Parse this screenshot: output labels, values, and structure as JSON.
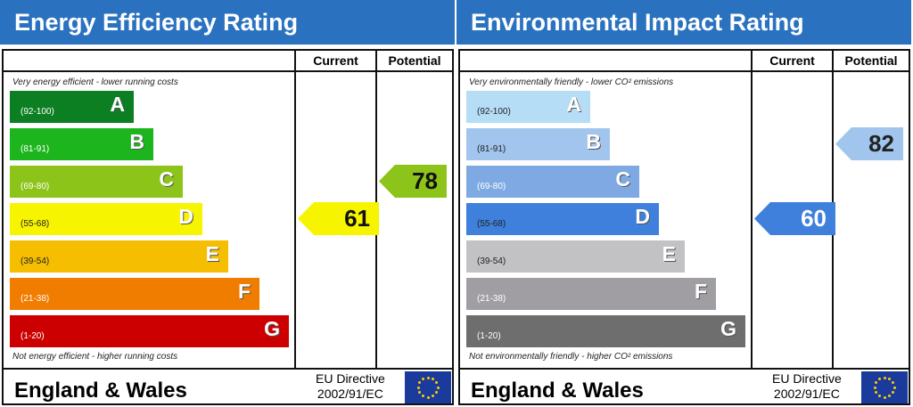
{
  "chart_data": [
    {
      "type": "bar",
      "title": "Energy Efficiency Rating",
      "columns": [
        "Current",
        "Potential"
      ],
      "top_caption": "Very energy efficient - lower running costs",
      "bottom_caption": "Not energy efficient - higher running costs",
      "bands": [
        {
          "letter": "A",
          "range": "(92-100)",
          "color": "#0b7f22",
          "text": "#fff"
        },
        {
          "letter": "B",
          "range": "(81-91)",
          "color": "#1db51d",
          "text": "#fff"
        },
        {
          "letter": "C",
          "range": "(69-80)",
          "color": "#8cc41a",
          "text": "#fff"
        },
        {
          "letter": "D",
          "range": "(55-68)",
          "color": "#f7f400",
          "text": "#222"
        },
        {
          "letter": "E",
          "range": "(39-54)",
          "color": "#f5be00",
          "text": "#222"
        },
        {
          "letter": "F",
          "range": "(21-38)",
          "color": "#f07c00",
          "text": "#fff"
        },
        {
          "letter": "G",
          "range": "(1-20)",
          "color": "#cc0000",
          "text": "#fff"
        }
      ],
      "current": {
        "value": "61",
        "band": "D",
        "color": "#f7f400"
      },
      "potential": {
        "value": "78",
        "band": "C",
        "color": "#8cc41a"
      },
      "region": "England & Wales",
      "directive_line1": "EU Directive",
      "directive_line2": "2002/91/EC"
    },
    {
      "type": "bar",
      "title": "Environmental Impact Rating",
      "columns": [
        "Current",
        "Potential"
      ],
      "top_caption": "Very environmentally friendly - lower CO² emissions",
      "bottom_caption": "Not environmentally friendly - higher CO² emissions",
      "bands": [
        {
          "letter": "A",
          "range": "(92-100)",
          "color": "#b5ddf6",
          "text": "#222"
        },
        {
          "letter": "B",
          "range": "(81-91)",
          "color": "#a1c5ec",
          "text": "#222"
        },
        {
          "letter": "C",
          "range": "(69-80)",
          "color": "#7ea9e2",
          "text": "#fff"
        },
        {
          "letter": "D",
          "range": "(55-68)",
          "color": "#3e80db",
          "text": "#222"
        },
        {
          "letter": "E",
          "range": "(39-54)",
          "color": "#c2c2c4",
          "text": "#222"
        },
        {
          "letter": "F",
          "range": "(21-38)",
          "color": "#a09ea2",
          "text": "#fff"
        },
        {
          "letter": "G",
          "range": "(1-20)",
          "color": "#6e6e6e",
          "text": "#fff"
        }
      ],
      "current": {
        "value": "60",
        "band": "D",
        "color": "#3e80db",
        "text": "#fff"
      },
      "potential": {
        "value": "82",
        "band": "B",
        "color": "#a1c5ec",
        "text": "#222"
      },
      "region": "England & Wales",
      "directive_line1": "EU Directive",
      "directive_line2": "2002/91/EC"
    }
  ]
}
